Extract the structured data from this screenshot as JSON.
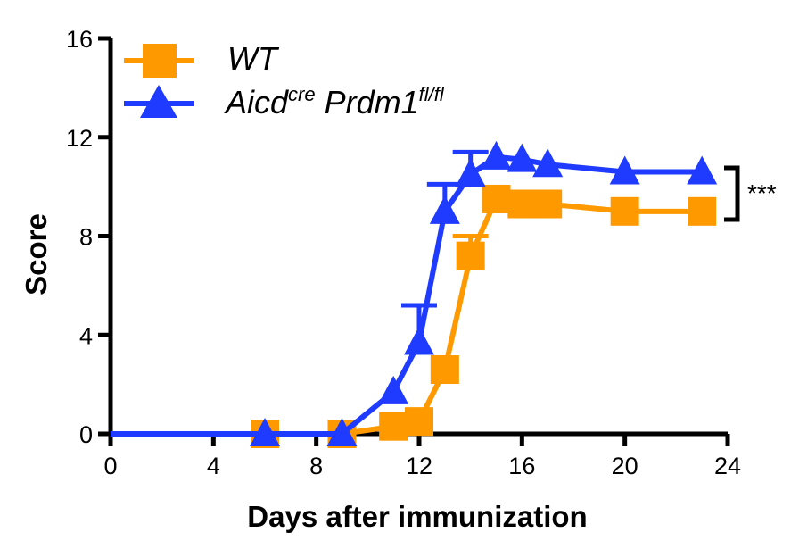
{
  "colors": {
    "wt": "#FF9900",
    "aicd": "#1F3BFF",
    "axis": "#000000"
  },
  "legend": {
    "wt_label": "WT",
    "aicd_base": "Aicd",
    "aicd_sup1": "cre",
    "aicd_mid": " Prdm1",
    "aicd_sup2": "fl/fl"
  },
  "significance": "***",
  "chart_data": {
    "type": "line",
    "xlabel": "Days after immunization",
    "ylabel": "Score",
    "xlim": [
      0,
      24
    ],
    "ylim": [
      0,
      16
    ],
    "xticks": [
      0,
      4,
      8,
      12,
      16,
      20,
      24
    ],
    "yticks": [
      0,
      4,
      8,
      12,
      16
    ],
    "legend_position": "top-left",
    "series": [
      {
        "name": "WT",
        "marker": "square",
        "color": "#FF9900",
        "x": [
          0,
          6,
          9,
          11,
          12,
          13,
          14,
          15,
          16,
          17,
          20,
          23
        ],
        "y": [
          0,
          0,
          0,
          0.3,
          0.5,
          2.6,
          7.2,
          9.5,
          9.3,
          9.3,
          9.0,
          9.0
        ],
        "err": [
          0,
          0,
          0,
          0,
          0,
          0,
          0.8,
          0,
          0,
          0,
          0,
          0
        ]
      },
      {
        "name": "Aicd cre Prdm1 fl/fl",
        "marker": "triangle",
        "color": "#1F3BFF",
        "x": [
          0,
          6,
          9,
          11,
          12,
          13,
          14,
          15,
          16,
          17,
          20,
          23
        ],
        "y": [
          0,
          0,
          0,
          1.7,
          3.7,
          9.0,
          10.5,
          11.2,
          11.1,
          10.9,
          10.6,
          10.6
        ],
        "err": [
          0,
          0,
          0,
          0,
          1.5,
          1.1,
          0.9,
          0,
          0,
          0,
          0,
          0
        ]
      }
    ]
  }
}
